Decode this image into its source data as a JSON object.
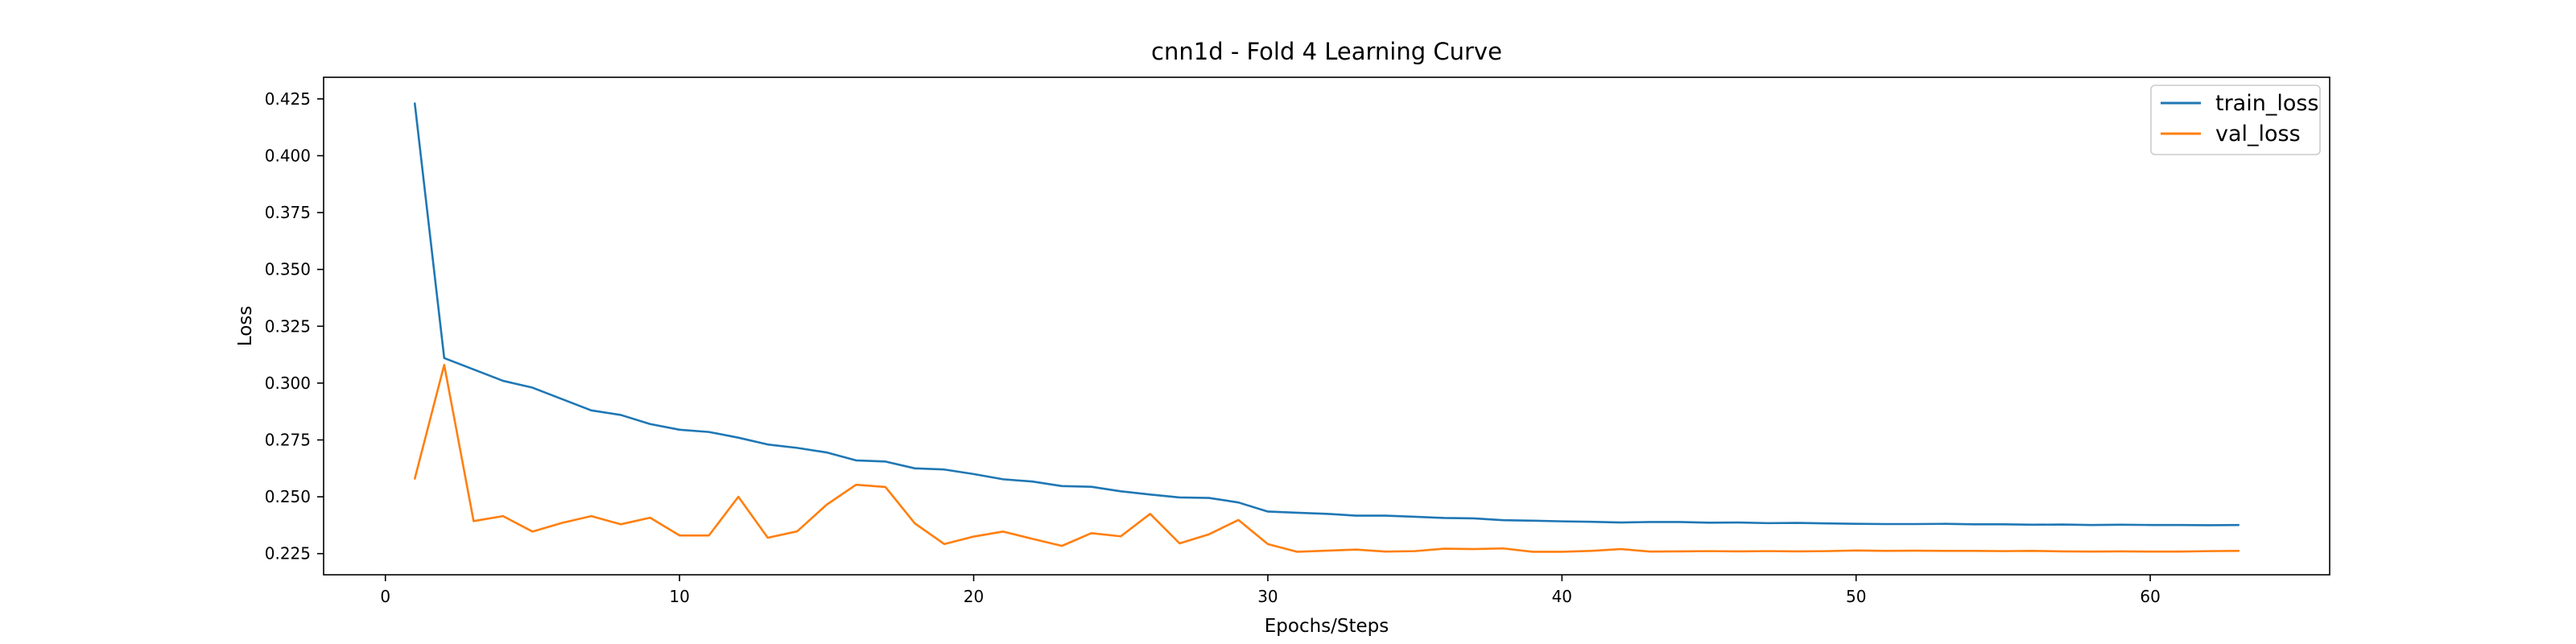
{
  "chart_data": {
    "type": "line",
    "title": "cnn1d - Fold 4 Learning Curve",
    "xlabel": "Epochs/Steps",
    "ylabel": "Loss",
    "xlim": [
      -2.1,
      66.1
    ],
    "ylim": [
      0.2157,
      0.4345
    ],
    "xticks": [
      0,
      10,
      20,
      30,
      40,
      50,
      60
    ],
    "yticks": [
      0.225,
      0.25,
      0.275,
      0.3,
      0.325,
      0.35,
      0.375,
      0.4,
      0.425
    ],
    "xtick_labels": [
      "0",
      "10",
      "20",
      "30",
      "40",
      "50",
      "60"
    ],
    "ytick_labels": [
      "0.225",
      "0.250",
      "0.275",
      "0.300",
      "0.325",
      "0.350",
      "0.375",
      "0.400",
      "0.425"
    ],
    "grid": false,
    "legend_position": "top-right",
    "x": [
      1,
      2,
      3,
      4,
      5,
      6,
      7,
      8,
      9,
      10,
      11,
      12,
      13,
      14,
      15,
      16,
      17,
      18,
      19,
      20,
      21,
      22,
      23,
      24,
      25,
      26,
      27,
      28,
      29,
      30,
      31,
      32,
      33,
      34,
      35,
      36,
      37,
      38,
      39,
      40,
      41,
      42,
      43,
      44,
      45,
      46,
      47,
      48,
      49,
      50,
      51,
      52,
      53,
      54,
      55,
      56,
      57,
      58,
      59,
      60,
      61,
      62,
      63
    ],
    "series": [
      {
        "name": "train_loss",
        "color": "#1f77b4",
        "values": [
          0.423,
          0.311,
          0.306,
          0.301,
          0.298,
          0.293,
          0.288,
          0.286,
          0.282,
          0.2795,
          0.2785,
          0.276,
          0.273,
          0.2715,
          0.2695,
          0.266,
          0.2655,
          0.2625,
          0.262,
          0.26,
          0.2577,
          0.2567,
          0.2547,
          0.2544,
          0.2524,
          0.251,
          0.2497,
          0.2495,
          0.2475,
          0.2435,
          0.243,
          0.2425,
          0.2417,
          0.2417,
          0.2412,
          0.2407,
          0.2405,
          0.2397,
          0.2395,
          0.2392,
          0.239,
          0.2387,
          0.2389,
          0.2389,
          0.2386,
          0.2387,
          0.2384,
          0.2385,
          0.2383,
          0.2381,
          0.238,
          0.238,
          0.2381,
          0.2379,
          0.2379,
          0.2377,
          0.2378,
          0.2376,
          0.2377,
          0.2376,
          0.2376,
          0.2375,
          0.2376
        ]
      },
      {
        "name": "val_loss",
        "color": "#ff7f0e",
        "values": [
          0.258,
          0.308,
          0.2393,
          0.2415,
          0.2347,
          0.2385,
          0.2415,
          0.2379,
          0.2408,
          0.233,
          0.233,
          0.25,
          0.232,
          0.2348,
          0.2465,
          0.2553,
          0.2543,
          0.2383,
          0.2292,
          0.2325,
          0.2347,
          0.2315,
          0.2284,
          0.234,
          0.2326,
          0.2425,
          0.2295,
          0.2335,
          0.2398,
          0.2292,
          0.2258,
          0.2263,
          0.2268,
          0.2259,
          0.2261,
          0.2272,
          0.227,
          0.2273,
          0.2258,
          0.2258,
          0.2262,
          0.227,
          0.2259,
          0.226,
          0.2261,
          0.226,
          0.2261,
          0.226,
          0.2261,
          0.2264,
          0.2262,
          0.2263,
          0.2262,
          0.2262,
          0.2261,
          0.2262,
          0.226,
          0.2259,
          0.226,
          0.2259,
          0.2259,
          0.2261,
          0.2262
        ]
      }
    ]
  }
}
